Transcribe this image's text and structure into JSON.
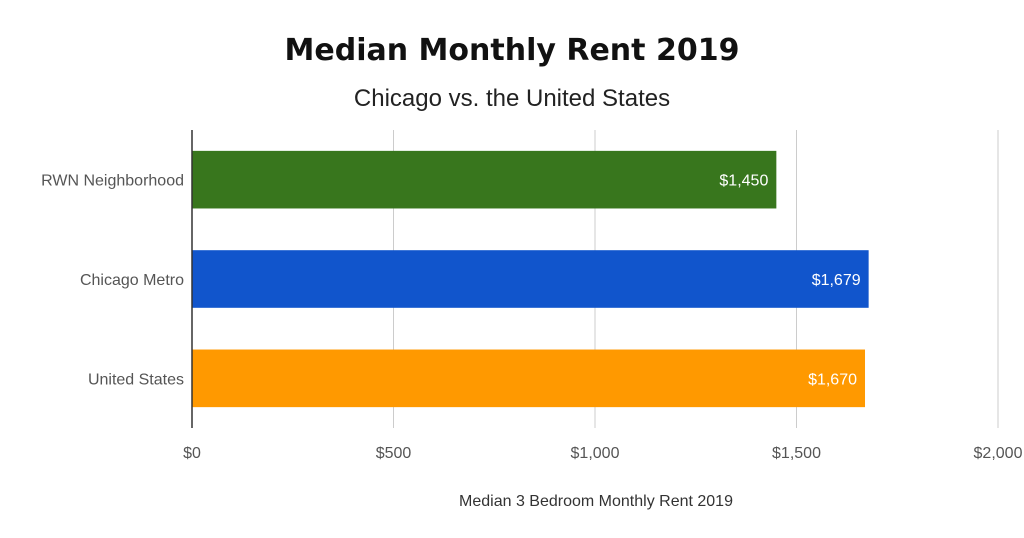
{
  "chart_data": {
    "type": "bar",
    "orientation": "horizontal",
    "title": "Median Monthly Rent 2019",
    "subtitle": "Chicago vs. the United States",
    "xlabel": "Median 3 Bedroom Monthly Rent 2019",
    "ylabel": "",
    "categories": [
      "RWN Neighborhood",
      "Chicago Metro",
      "United States"
    ],
    "values": [
      1450,
      1679,
      1670
    ],
    "data_labels": [
      "$1,450",
      "$1,679",
      "$1,670"
    ],
    "colors": [
      "#38761d",
      "#1155cc",
      "#ff9900"
    ],
    "xlim": [
      0,
      2000
    ],
    "ticks": [
      0,
      500,
      1000,
      1500,
      2000
    ],
    "tick_labels": [
      "$0",
      "$500",
      "$1,000",
      "$1,500",
      "$2,000"
    ],
    "grid": "vertical",
    "legend": "none"
  }
}
